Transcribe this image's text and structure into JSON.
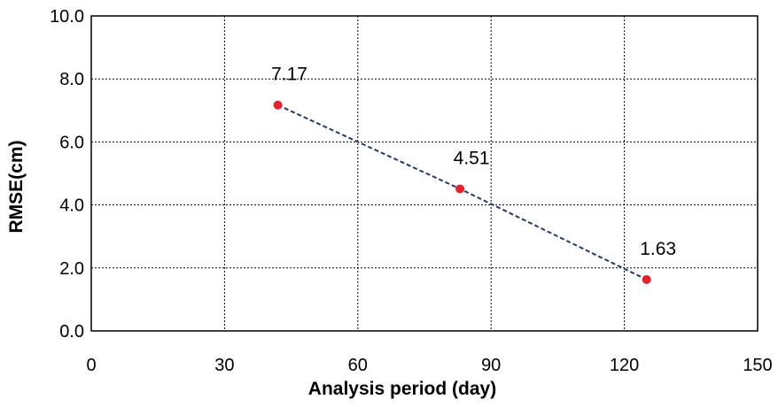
{
  "chart_data": {
    "type": "line",
    "title": "",
    "xlabel": "Analysis period (day)",
    "ylabel": "RMSE(cm)",
    "xlim": [
      0,
      150
    ],
    "ylim": [
      0,
      10
    ],
    "x_ticks": [
      0,
      30,
      60,
      90,
      120,
      150
    ],
    "x_tick_labels": [
      "0",
      "30",
      "60",
      "90",
      "120",
      "150"
    ],
    "y_ticks": [
      0,
      2,
      4,
      6,
      8,
      10
    ],
    "y_tick_labels": [
      "0.0",
      "2.0",
      "4.0",
      "6.0",
      "8.0",
      "10.0"
    ],
    "grid": true,
    "legend": "none",
    "series": [
      {
        "x": [
          42,
          83,
          125
        ],
        "y": [
          7.17,
          4.51,
          1.63
        ],
        "data_labels": [
          "7.17",
          "4.51",
          "1.63"
        ],
        "line_style": "dashed",
        "line_color": "#1f3a6e",
        "marker_color": "#e8202a"
      }
    ]
  }
}
